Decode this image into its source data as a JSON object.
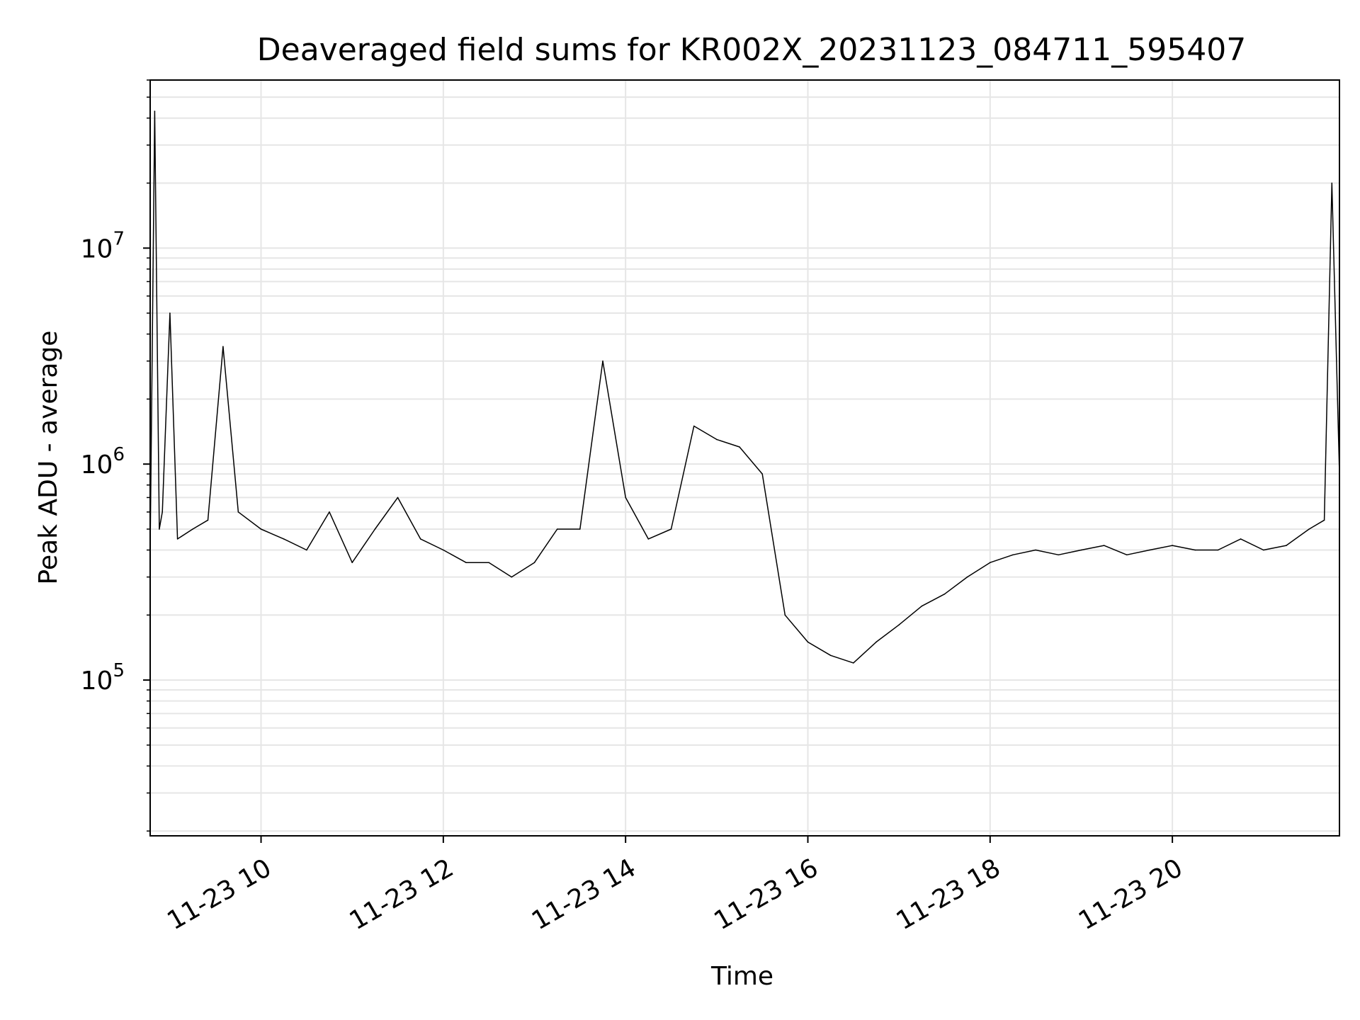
{
  "chart_data": {
    "type": "line",
    "title": "Deaveraged field sums for KR002X_20231123_084711_595407",
    "xlabel": "Time",
    "ylabel": "Peak ADU - average",
    "yscale": "log",
    "xlim": [
      "11-23 08:47",
      "11-23 21:50"
    ],
    "ylim": [
      19000,
      60000000
    ],
    "x_ticks": [
      {
        "label": "11-23 10",
        "t": "11-23 10:00"
      },
      {
        "label": "11-23 12",
        "t": "11-23 12:00"
      },
      {
        "label": "11-23 14",
        "t": "11-23 14:00"
      },
      {
        "label": "11-23 16",
        "t": "11-23 16:00"
      },
      {
        "label": "11-23 18",
        "t": "11-23 18:00"
      },
      {
        "label": "11-23 20",
        "t": "11-23 20:00"
      }
    ],
    "y_ticks": [
      {
        "base": "10",
        "exp": "5",
        "value": 100000
      },
      {
        "base": "10",
        "exp": "6",
        "value": 1000000
      },
      {
        "base": "10",
        "exp": "7",
        "value": 10000000
      }
    ],
    "grid": true,
    "line_color": "#000000",
    "series": [
      {
        "x": [
          "11-23 08:47",
          "11-23 08:50",
          "11-23 08:53",
          "11-23 08:55",
          "11-23 09:00",
          "11-23 09:05",
          "11-23 09:15",
          "11-23 09:25",
          "11-23 09:35",
          "11-23 09:45",
          "11-23 10:00",
          "11-23 10:15",
          "11-23 10:30",
          "11-23 10:45",
          "11-23 11:00",
          "11-23 11:15",
          "11-23 11:30",
          "11-23 11:45",
          "11-23 12:00",
          "11-23 12:15",
          "11-23 12:30",
          "11-23 12:45",
          "11-23 13:00",
          "11-23 13:15",
          "11-23 13:30",
          "11-23 13:45",
          "11-23 14:00",
          "11-23 14:15",
          "11-23 14:30",
          "11-23 14:45",
          "11-23 15:00",
          "11-23 15:15",
          "11-23 15:30",
          "11-23 15:45",
          "11-23 16:00",
          "11-23 16:15",
          "11-23 16:30",
          "11-23 16:45",
          "11-23 17:00",
          "11-23 17:15",
          "11-23 17:30",
          "11-23 17:45",
          "11-23 18:00",
          "11-23 18:15",
          "11-23 18:30",
          "11-23 18:45",
          "11-23 19:00",
          "11-23 19:15",
          "11-23 19:30",
          "11-23 19:45",
          "11-23 20:00",
          "11-23 20:15",
          "11-23 20:30",
          "11-23 20:45",
          "11-23 21:00",
          "11-23 21:15",
          "11-23 21:30",
          "11-23 21:40",
          "11-23 21:45",
          "11-23 21:50"
        ],
        "y": [
          400000,
          43000000,
          500000,
          600000,
          5000000,
          450000,
          500000,
          550000,
          3500000,
          600000,
          500000,
          450000,
          400000,
          600000,
          350000,
          500000,
          700000,
          450000,
          400000,
          350000,
          350000,
          300000,
          350000,
          500000,
          500000,
          3000000,
          700000,
          450000,
          500000,
          1500000,
          1300000,
          1200000,
          900000,
          200000,
          150000,
          130000,
          120000,
          150000,
          180000,
          220000,
          250000,
          300000,
          350000,
          380000,
          400000,
          380000,
          400000,
          420000,
          380000,
          400000,
          420000,
          400000,
          400000,
          450000,
          400000,
          420000,
          500000,
          550000,
          20000000,
          900000
        ]
      }
    ]
  }
}
